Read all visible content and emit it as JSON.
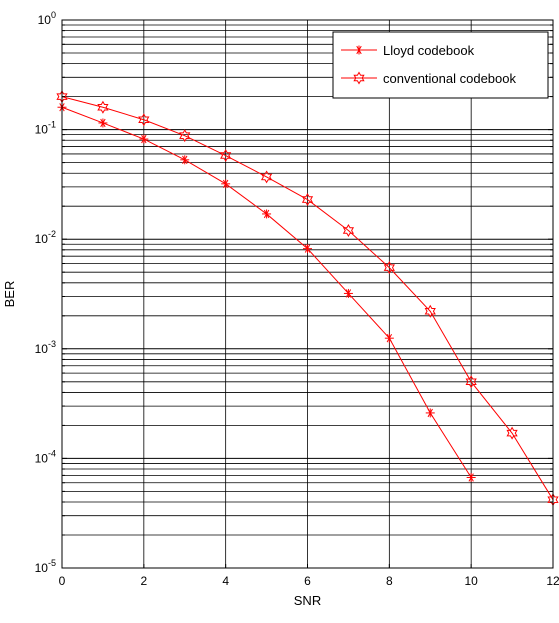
{
  "chart_data": {
    "type": "line",
    "xlabel": "SNR",
    "ylabel": "BER",
    "xlim": [
      0,
      12
    ],
    "ylim": [
      1e-05,
      1
    ],
    "yscale": "log",
    "grid": true,
    "legend_position": "top-right",
    "x_ticks": [
      0,
      2,
      4,
      6,
      8,
      10,
      12
    ],
    "y_tick_exponents": [
      0,
      -1,
      -2,
      -3,
      -4,
      -5
    ],
    "y_tick_base": "10",
    "series": [
      {
        "name": "Lloyd codebook",
        "marker": "asterisk",
        "color": "#ff0000",
        "x": [
          0,
          1,
          2,
          3,
          4,
          5,
          6,
          7,
          8,
          9,
          10
        ],
        "y": [
          0.16,
          0.115,
          0.082,
          0.053,
          0.032,
          0.017,
          0.0082,
          0.0032,
          0.00125,
          0.00026,
          6.7e-05
        ]
      },
      {
        "name": "conventional codebook",
        "marker": "hexagram",
        "color": "#ff0000",
        "x": [
          0,
          1,
          2,
          3,
          4,
          5,
          6,
          7,
          8,
          9,
          10,
          11,
          12
        ],
        "y": [
          0.2,
          0.16,
          0.123,
          0.088,
          0.058,
          0.037,
          0.023,
          0.012,
          0.0055,
          0.0022,
          0.0005,
          0.00017,
          4.2e-05
        ]
      }
    ]
  }
}
